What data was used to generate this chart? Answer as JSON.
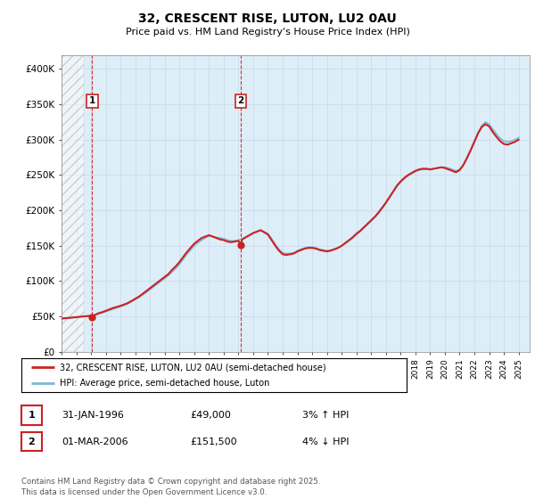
{
  "title": "32, CRESCENT RISE, LUTON, LU2 0AU",
  "subtitle": "Price paid vs. HM Land Registry's House Price Index (HPI)",
  "xlim_start": 1994.0,
  "xlim_end": 2025.75,
  "ylim": [
    0,
    420000
  ],
  "yticks": [
    0,
    50000,
    100000,
    150000,
    200000,
    250000,
    300000,
    350000,
    400000
  ],
  "ytick_labels": [
    "£0",
    "£50K",
    "£100K",
    "£150K",
    "£200K",
    "£250K",
    "£300K",
    "£350K",
    "£400K"
  ],
  "sale1_x": 1996.08,
  "sale1_y": 49000,
  "sale1_label": "1",
  "sale2_x": 2006.17,
  "sale2_y": 151500,
  "sale2_label": "2",
  "hpi_line_color": "#7bb8d4",
  "price_line_color": "#cc2222",
  "sale_marker_color": "#cc2222",
  "vline_color": "#cc2222",
  "grid_color": "#c8d8e8",
  "bg_color": "#ddeef8",
  "legend_label1": "32, CRESCENT RISE, LUTON, LU2 0AU (semi-detached house)",
  "legend_label2": "HPI: Average price, semi-detached house, Luton",
  "table_row1": [
    "1",
    "31-JAN-1996",
    "£49,000",
    "3% ↑ HPI"
  ],
  "table_row2": [
    "2",
    "01-MAR-2006",
    "£151,500",
    "4% ↓ HPI"
  ],
  "footnote": "Contains HM Land Registry data © Crown copyright and database right 2025.\nThis data is licensed under the Open Government Licence v3.0.",
  "hpi_data_x": [
    1994.0,
    1994.25,
    1994.5,
    1994.75,
    1995.0,
    1995.25,
    1995.5,
    1995.75,
    1996.0,
    1996.25,
    1996.5,
    1996.75,
    1997.0,
    1997.25,
    1997.5,
    1997.75,
    1998.0,
    1998.25,
    1998.5,
    1998.75,
    1999.0,
    1999.25,
    1999.5,
    1999.75,
    2000.0,
    2000.25,
    2000.5,
    2000.75,
    2001.0,
    2001.25,
    2001.5,
    2001.75,
    2002.0,
    2002.25,
    2002.5,
    2002.75,
    2003.0,
    2003.25,
    2003.5,
    2003.75,
    2004.0,
    2004.25,
    2004.5,
    2004.75,
    2005.0,
    2005.25,
    2005.5,
    2005.75,
    2006.0,
    2006.25,
    2006.5,
    2006.75,
    2007.0,
    2007.25,
    2007.5,
    2007.75,
    2008.0,
    2008.25,
    2008.5,
    2008.75,
    2009.0,
    2009.25,
    2009.5,
    2009.75,
    2010.0,
    2010.25,
    2010.5,
    2010.75,
    2011.0,
    2011.25,
    2011.5,
    2011.75,
    2012.0,
    2012.25,
    2012.5,
    2012.75,
    2013.0,
    2013.25,
    2013.5,
    2013.75,
    2014.0,
    2014.25,
    2014.5,
    2014.75,
    2015.0,
    2015.25,
    2015.5,
    2015.75,
    2016.0,
    2016.25,
    2016.5,
    2016.75,
    2017.0,
    2017.25,
    2017.5,
    2017.75,
    2018.0,
    2018.25,
    2018.5,
    2018.75,
    2019.0,
    2019.25,
    2019.5,
    2019.75,
    2020.0,
    2020.25,
    2020.5,
    2020.75,
    2021.0,
    2021.25,
    2021.5,
    2021.75,
    2022.0,
    2022.25,
    2022.5,
    2022.75,
    2023.0,
    2023.25,
    2023.5,
    2023.75,
    2024.0,
    2024.25,
    2024.5,
    2024.75,
    2025.0
  ],
  "hpi_data_y": [
    47000,
    47500,
    48000,
    48500,
    49000,
    49500,
    50000,
    50500,
    51000,
    52000,
    53500,
    55000,
    57000,
    58500,
    60500,
    62000,
    64000,
    66000,
    68000,
    71000,
    74000,
    77000,
    80500,
    84000,
    88000,
    92000,
    96000,
    100000,
    104000,
    108000,
    113000,
    118000,
    124000,
    131000,
    138000,
    144000,
    150000,
    154000,
    158000,
    161000,
    164000,
    163000,
    162000,
    161000,
    160000,
    158000,
    157000,
    157000,
    158000,
    160000,
    162000,
    165000,
    168000,
    170000,
    172000,
    170000,
    167000,
    160000,
    152000,
    145000,
    140000,
    139000,
    139000,
    140000,
    143000,
    145000,
    147000,
    148000,
    148000,
    147000,
    145000,
    144000,
    143000,
    144000,
    145000,
    147000,
    150000,
    153000,
    157000,
    161000,
    166000,
    170000,
    175000,
    180000,
    185000,
    190000,
    196000,
    203000,
    210000,
    218000,
    226000,
    234000,
    240000,
    245000,
    249000,
    252000,
    255000,
    257000,
    258000,
    258000,
    258000,
    259000,
    260000,
    261000,
    261000,
    260000,
    258000,
    256000,
    258000,
    265000,
    275000,
    286000,
    298000,
    310000,
    320000,
    325000,
    322000,
    315000,
    308000,
    302000,
    298000,
    297000,
    298000,
    300000,
    303000
  ],
  "price_data_x": [
    1994.0,
    1994.25,
    1994.5,
    1994.75,
    1995.0,
    1995.25,
    1995.5,
    1995.75,
    1996.0,
    1996.08,
    1996.25,
    1996.5,
    1996.75,
    1997.0,
    1997.25,
    1997.5,
    1997.75,
    1998.0,
    1998.25,
    1998.5,
    1998.75,
    1999.0,
    1999.25,
    1999.5,
    1999.75,
    2000.0,
    2000.25,
    2000.5,
    2000.75,
    2001.0,
    2001.25,
    2001.5,
    2001.75,
    2002.0,
    2002.25,
    2002.5,
    2002.75,
    2003.0,
    2003.25,
    2003.5,
    2003.75,
    2004.0,
    2004.25,
    2004.5,
    2004.75,
    2005.0,
    2005.25,
    2005.5,
    2005.75,
    2006.0,
    2006.17,
    2006.25,
    2006.5,
    2006.75,
    2007.0,
    2007.25,
    2007.5,
    2007.75,
    2008.0,
    2008.25,
    2008.5,
    2008.75,
    2009.0,
    2009.25,
    2009.5,
    2009.75,
    2010.0,
    2010.25,
    2010.5,
    2010.75,
    2011.0,
    2011.25,
    2011.5,
    2011.75,
    2012.0,
    2012.25,
    2012.5,
    2012.75,
    2013.0,
    2013.25,
    2013.5,
    2013.75,
    2014.0,
    2014.25,
    2014.5,
    2014.75,
    2015.0,
    2015.25,
    2015.5,
    2015.75,
    2016.0,
    2016.25,
    2016.5,
    2016.75,
    2017.0,
    2017.25,
    2017.5,
    2017.75,
    2018.0,
    2018.25,
    2018.5,
    2018.75,
    2019.0,
    2019.25,
    2019.5,
    2019.75,
    2020.0,
    2020.25,
    2020.5,
    2020.75,
    2021.0,
    2021.25,
    2021.5,
    2021.75,
    2022.0,
    2022.25,
    2022.5,
    2022.75,
    2023.0,
    2023.25,
    2023.5,
    2023.75,
    2024.0,
    2024.25,
    2024.5,
    2024.75,
    2025.0
  ],
  "price_data_y": [
    47000,
    47500,
    48000,
    48500,
    49000,
    49500,
    50000,
    50500,
    51000,
    49000,
    52000,
    54500,
    56000,
    58000,
    60000,
    62000,
    63500,
    65000,
    67000,
    69000,
    72000,
    75000,
    78000,
    82000,
    86000,
    90000,
    94000,
    98000,
    102000,
    106000,
    110000,
    116000,
    121000,
    127000,
    134000,
    141000,
    147000,
    153000,
    157000,
    161000,
    163000,
    165000,
    163000,
    161000,
    159000,
    158000,
    156000,
    155000,
    156000,
    157000,
    151500,
    159000,
    162000,
    165000,
    168000,
    170000,
    172000,
    169000,
    166000,
    158000,
    150000,
    143000,
    138000,
    137000,
    138000,
    139000,
    142000,
    144000,
    146000,
    147000,
    147000,
    146000,
    144000,
    143000,
    142000,
    143000,
    145000,
    147000,
    150000,
    154000,
    158000,
    162000,
    167000,
    171000,
    176000,
    181000,
    186000,
    191000,
    197000,
    204000,
    211000,
    219000,
    227000,
    235000,
    241000,
    246000,
    250000,
    253000,
    256000,
    258000,
    259000,
    259000,
    258000,
    259000,
    260000,
    261000,
    260000,
    258000,
    256000,
    254000,
    257000,
    264000,
    274000,
    285000,
    297000,
    309000,
    318000,
    322000,
    319000,
    311000,
    304000,
    298000,
    294000,
    293000,
    295000,
    297000,
    300000
  ]
}
